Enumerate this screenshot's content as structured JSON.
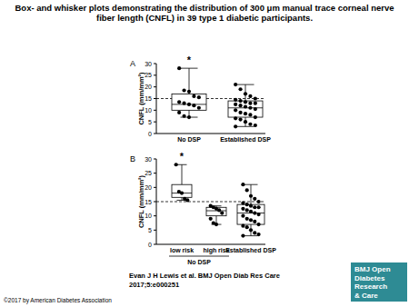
{
  "figure": {
    "title": [
      "Box- and whisker plots demonstrating the distribution of 300 μm manual trace corneal nerve",
      "fiber length (CNFL) in 39 type 1 diabetic participants."
    ],
    "citation": [
      "Evan J H Lewis et al. BMJ Open Diab Res Care",
      "2017;5:e000251"
    ],
    "logo": [
      "BMJ Open",
      "Diabetes",
      "Research",
      "& Care"
    ],
    "copyright": "©2017 by American Diabetes Association"
  },
  "chart_data": [
    {
      "type": "box",
      "panel_label": "A",
      "ylabel": "CNFL (mm/mm²)",
      "categories": [
        "No DSP",
        "Established DSP"
      ],
      "boxes": [
        {
          "min": 7,
          "q1": 10,
          "median": 12.5,
          "q3": 17,
          "max": 28
        },
        {
          "min": 3,
          "q1": 7,
          "median": 11,
          "q3": 14,
          "max": 21
        }
      ],
      "points": [
        [
          28,
          18.5,
          18,
          16,
          15.5,
          13.5,
          13,
          12.5,
          12,
          11,
          9,
          7.5,
          7
        ],
        [
          21,
          19,
          17,
          16,
          15,
          14.5,
          14,
          13.5,
          13,
          13,
          12.5,
          12,
          11.5,
          11,
          10.5,
          10,
          9,
          8.5,
          8,
          7,
          6.5,
          6,
          5,
          4,
          3.5,
          3
        ]
      ],
      "reference_line": 15,
      "annotations": [
        {
          "text": "*",
          "category": 0
        }
      ],
      "ylim": [
        0,
        30
      ],
      "yticks": [
        0,
        5,
        10,
        15,
        20,
        25,
        30
      ]
    },
    {
      "type": "box",
      "panel_label": "B",
      "ylabel": "CNFL (mm/mm²)",
      "categories": [
        "low risk",
        "high risk",
        "Established DSP"
      ],
      "groups": [
        {
          "label": "No DSP",
          "categories": [
            0,
            1
          ]
        }
      ],
      "boxes": [
        {
          "min": 15.5,
          "q1": 16.5,
          "median": 18,
          "q3": 21,
          "max": 28
        },
        {
          "min": 7,
          "q1": 10,
          "median": 11.8,
          "q3": 13,
          "max": 13.5
        },
        {
          "min": 3,
          "q1": 7,
          "median": 11,
          "q3": 14,
          "max": 21
        }
      ],
      "points": [
        [
          28,
          18.5,
          18,
          16,
          15.5
        ],
        [
          13.5,
          13,
          12.5,
          12,
          11,
          9,
          7.5,
          7
        ],
        [
          21,
          19,
          17,
          16,
          15,
          14.5,
          14,
          13.5,
          13,
          13,
          12.5,
          12,
          11.5,
          11,
          10.5,
          10,
          9,
          8.5,
          8,
          7,
          6.5,
          6,
          5,
          4,
          3.5,
          3
        ]
      ],
      "reference_line": 15,
      "annotations": [
        {
          "text": "*",
          "category": 0
        }
      ],
      "ylim": [
        0,
        30
      ],
      "yticks": [
        0,
        5,
        10,
        15,
        20,
        25,
        30
      ]
    }
  ]
}
